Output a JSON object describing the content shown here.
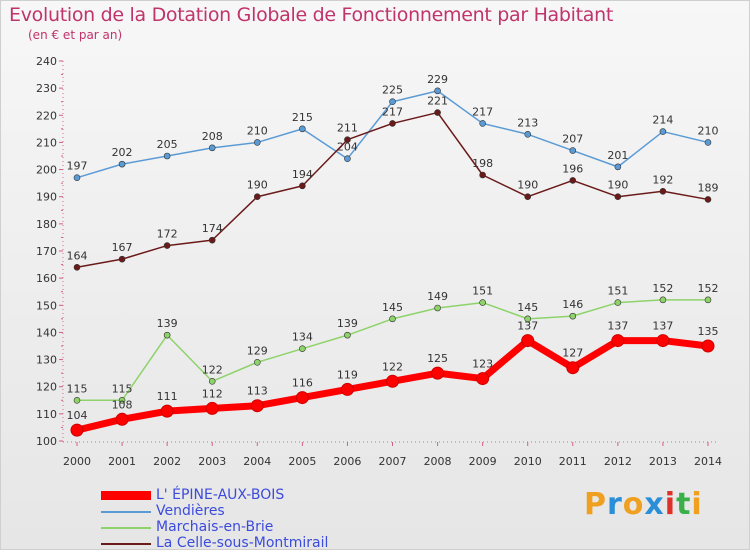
{
  "chart_data": {
    "type": "line",
    "title": "Evolution de la Dotation Globale de Fonctionnement par Habitant",
    "subtitle": "(en € et par an)",
    "xlabel": "",
    "ylabel": "",
    "categories": [
      "2000",
      "2001",
      "2002",
      "2003",
      "2004",
      "2005",
      "2006",
      "2007",
      "2008",
      "2009",
      "2010",
      "2011",
      "2012",
      "2013",
      "2014"
    ],
    "ylim": [
      100,
      240
    ],
    "yticks": [
      100,
      110,
      120,
      130,
      140,
      150,
      160,
      170,
      180,
      190,
      200,
      210,
      220,
      230,
      240
    ],
    "grid": false,
    "legend_position": "bottom-left",
    "series": [
      {
        "name": "Vendières",
        "color": "#5b9bd5",
        "values": [
          197,
          202,
          205,
          208,
          210,
          215,
          204,
          225,
          229,
          217,
          213,
          207,
          201,
          214,
          210
        ]
      },
      {
        "name": "La Celle-sous-Montmirail",
        "color": "#6b1a1a",
        "values": [
          164,
          167,
          172,
          174,
          190,
          194,
          211,
          217,
          221,
          198,
          190,
          196,
          190,
          192,
          189
        ]
      },
      {
        "name": "Marchais-en-Brie",
        "color": "#8ed36a",
        "values": [
          115,
          115,
          139,
          122,
          129,
          134,
          139,
          145,
          149,
          151,
          145,
          146,
          151,
          152,
          152
        ]
      },
      {
        "name": "L' ÉPINE-AUX-BOIS",
        "color": "#ff0000",
        "values": [
          104,
          108,
          111,
          112,
          113,
          116,
          119,
          122,
          125,
          123,
          137,
          127,
          137,
          137,
          135
        ]
      }
    ],
    "legend": [
      {
        "label": "L' ÉPINE-AUX-BOIS",
        "color": "#ff0000"
      },
      {
        "label": "Vendières",
        "color": "#5b9bd5"
      },
      {
        "label": "Marchais-en-Brie",
        "color": "#8ed36a"
      },
      {
        "label": "La Celle-sous-Montmirail",
        "color": "#6b1a1a"
      }
    ]
  },
  "logo": {
    "letters": [
      "P",
      "r",
      "o",
      "x",
      "i",
      "t",
      "i"
    ],
    "colors": [
      "#f0a020",
      "#2a8fd8",
      "#f0a020",
      "#2a8fd8",
      "#e0302a",
      "#3ab04a",
      "#f0a020"
    ]
  }
}
